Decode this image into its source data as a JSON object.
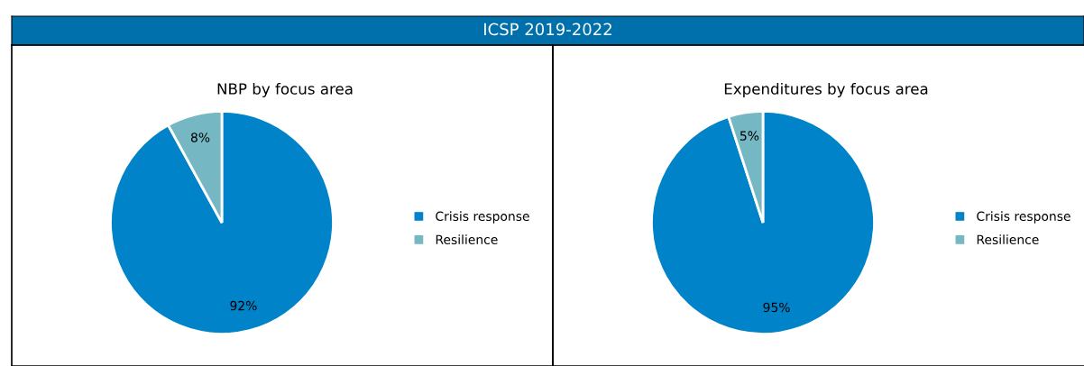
{
  "chart_data": [
    {
      "type": "other",
      "title": "ICSP 2019-2022",
      "color": "#0070ac"
    },
    {
      "type": "pie",
      "title": "NBP by focus area",
      "categories": [
        "Crisis response",
        "Resilience"
      ],
      "values": [
        92,
        8
      ],
      "colors": [
        "#0083c8",
        "#75b8c4"
      ],
      "value_labels": [
        "92%",
        "8%"
      ],
      "legend": "right"
    },
    {
      "type": "pie",
      "title": "Expenditures by focus area",
      "categories": [
        "Crisis response",
        "Resilience"
      ],
      "values": [
        95,
        5
      ],
      "colors": [
        "#0083c8",
        "#75b8c4"
      ],
      "value_labels": [
        "95%",
        "5%"
      ],
      "legend": "right"
    }
  ]
}
